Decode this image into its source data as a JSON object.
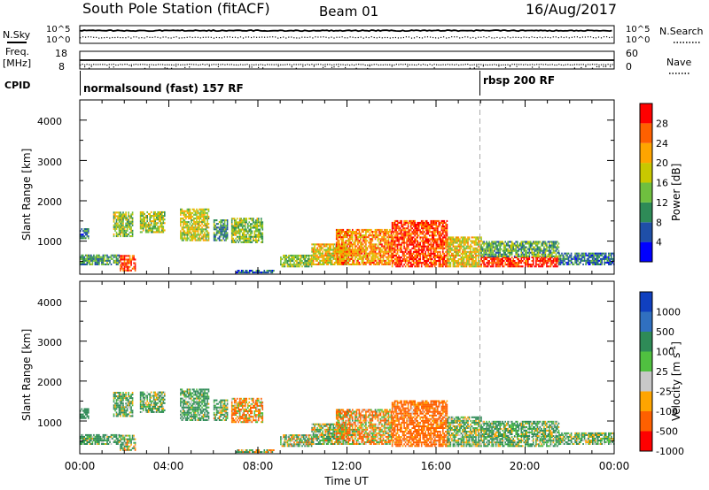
{
  "header": {
    "title": "South Pole Station (fitACF)",
    "beam": "Beam 01",
    "date": "16/Aug/2017"
  },
  "noise_panel": {
    "left_label": "N.Sky",
    "right_label": "N.Search",
    "left_ticks": [
      "10^5",
      "10^0"
    ],
    "right_ticks": [
      "10^5",
      "10^0"
    ]
  },
  "freq_panel": {
    "left_label_1": "Freq.",
    "left_label_2": "[MHz]",
    "right_label": "Nave",
    "left_ticks": [
      "18",
      "8"
    ],
    "right_ticks": [
      "60",
      "0"
    ]
  },
  "cpid_panel": {
    "label": "CPID",
    "programs": [
      {
        "text": "normalsound (fast) 157 RF",
        "start_hour": 0
      },
      {
        "text": "rbsp 200 RF",
        "start_hour": 18
      }
    ]
  },
  "power_panel": {
    "ylabel": "Slant Range [km]",
    "yticks": [
      "4000",
      "3000",
      "2000",
      "1000"
    ],
    "colorbar_label": "Power [dB]",
    "colorbar_ticks": [
      "28",
      "24",
      "20",
      "16",
      "12",
      "8",
      "4"
    ],
    "colors": [
      "#0000ff",
      "#1f4fa8",
      "#2e8b57",
      "#6fbf3f",
      "#c8c800",
      "#ffa500",
      "#ff6000",
      "#ff0000"
    ]
  },
  "velocity_panel": {
    "ylabel": "Slant Range [km]",
    "yticks": [
      "4000",
      "3000",
      "2000",
      "1000"
    ],
    "colorbar_label": "Velocity [m s",
    "colorbar_label_sup": "-1",
    "colorbar_label_end": "]",
    "colorbar_ticks": [
      "1000",
      "500",
      "100",
      "25",
      "-25",
      "-100",
      "-500",
      "-1000"
    ],
    "colors": [
      "#1040c0",
      "#3070c0",
      "#2e8b57",
      "#50c040",
      "#c8c8c8",
      "#ffa500",
      "#ff6000",
      "#ff0000"
    ]
  },
  "x_axis": {
    "label": "Time UT",
    "ticks": [
      "00:00",
      "04:00",
      "08:00",
      "12:00",
      "16:00",
      "20:00",
      "00:00"
    ]
  },
  "chart_data": {
    "type": "heatmap",
    "title": "South Pole Station (fitACF)",
    "x_range_hours": [
      0,
      24
    ],
    "y_range_km": [
      180,
      4500
    ],
    "xlabel": "Time UT",
    "ylabel": "Slant Range [km]",
    "power_dB_range": [
      0,
      30
    ],
    "velocity_range_ms": [
      -1000,
      1000
    ],
    "program_change_hour": 18,
    "echo_regions": [
      {
        "start_hour": 0.0,
        "end_hour": 1.8,
        "range_min_km": 400,
        "range_max_km": 650,
        "power_dB": 10,
        "velocity_ms": 150
      },
      {
        "start_hour": 0.0,
        "end_hour": 0.4,
        "range_min_km": 1050,
        "range_max_km": 1300,
        "power_dB": 8,
        "velocity_ms": 300
      },
      {
        "start_hour": 1.8,
        "end_hour": 2.5,
        "range_min_km": 250,
        "range_max_km": 650,
        "power_dB": 26,
        "velocity_ms": 50
      },
      {
        "start_hour": 1.5,
        "end_hour": 2.4,
        "range_min_km": 1100,
        "range_max_km": 1700,
        "power_dB": 14,
        "velocity_ms": 120
      },
      {
        "start_hour": 2.7,
        "end_hour": 3.8,
        "range_min_km": 1200,
        "range_max_km": 1700,
        "power_dB": 15,
        "velocity_ms": 100
      },
      {
        "start_hour": 4.5,
        "end_hour": 5.8,
        "range_min_km": 1000,
        "range_max_km": 1800,
        "power_dB": 16,
        "velocity_ms": 150
      },
      {
        "start_hour": 6.0,
        "end_hour": 6.6,
        "range_min_km": 1000,
        "range_max_km": 1500,
        "power_dB": 10,
        "velocity_ms": 80
      },
      {
        "start_hour": 6.8,
        "end_hour": 8.2,
        "range_min_km": 950,
        "range_max_km": 1550,
        "power_dB": 14,
        "velocity_ms": -120
      },
      {
        "start_hour": 7.0,
        "end_hour": 8.7,
        "range_min_km": 200,
        "range_max_km": 260,
        "power_dB": 6,
        "velocity_ms": 30
      },
      {
        "start_hour": 9.0,
        "end_hour": 10.4,
        "range_min_km": 350,
        "range_max_km": 650,
        "power_dB": 14,
        "velocity_ms": 60
      },
      {
        "start_hour": 10.4,
        "end_hour": 12.0,
        "range_min_km": 400,
        "range_max_km": 900,
        "power_dB": 18,
        "velocity_ms": 80
      },
      {
        "start_hour": 11.5,
        "end_hour": 14.0,
        "range_min_km": 400,
        "range_max_km": 1300,
        "power_dB": 22,
        "velocity_ms": -80
      },
      {
        "start_hour": 14.0,
        "end_hour": 16.5,
        "range_min_km": 350,
        "range_max_km": 1500,
        "power_dB": 26,
        "velocity_ms": -200
      },
      {
        "start_hour": 16.5,
        "end_hour": 18.0,
        "range_min_km": 350,
        "range_max_km": 1100,
        "power_dB": 18,
        "velocity_ms": 100
      },
      {
        "start_hour": 18.0,
        "end_hour": 21.5,
        "range_min_km": 350,
        "range_max_km": 600,
        "power_dB": 28,
        "velocity_ms": 100
      },
      {
        "start_hour": 18.0,
        "end_hour": 21.5,
        "range_min_km": 600,
        "range_max_km": 1000,
        "power_dB": 12,
        "velocity_ms": 120
      },
      {
        "start_hour": 21.5,
        "end_hour": 24.0,
        "range_min_km": 400,
        "range_max_km": 700,
        "power_dB": 8,
        "velocity_ms": 110
      }
    ]
  }
}
